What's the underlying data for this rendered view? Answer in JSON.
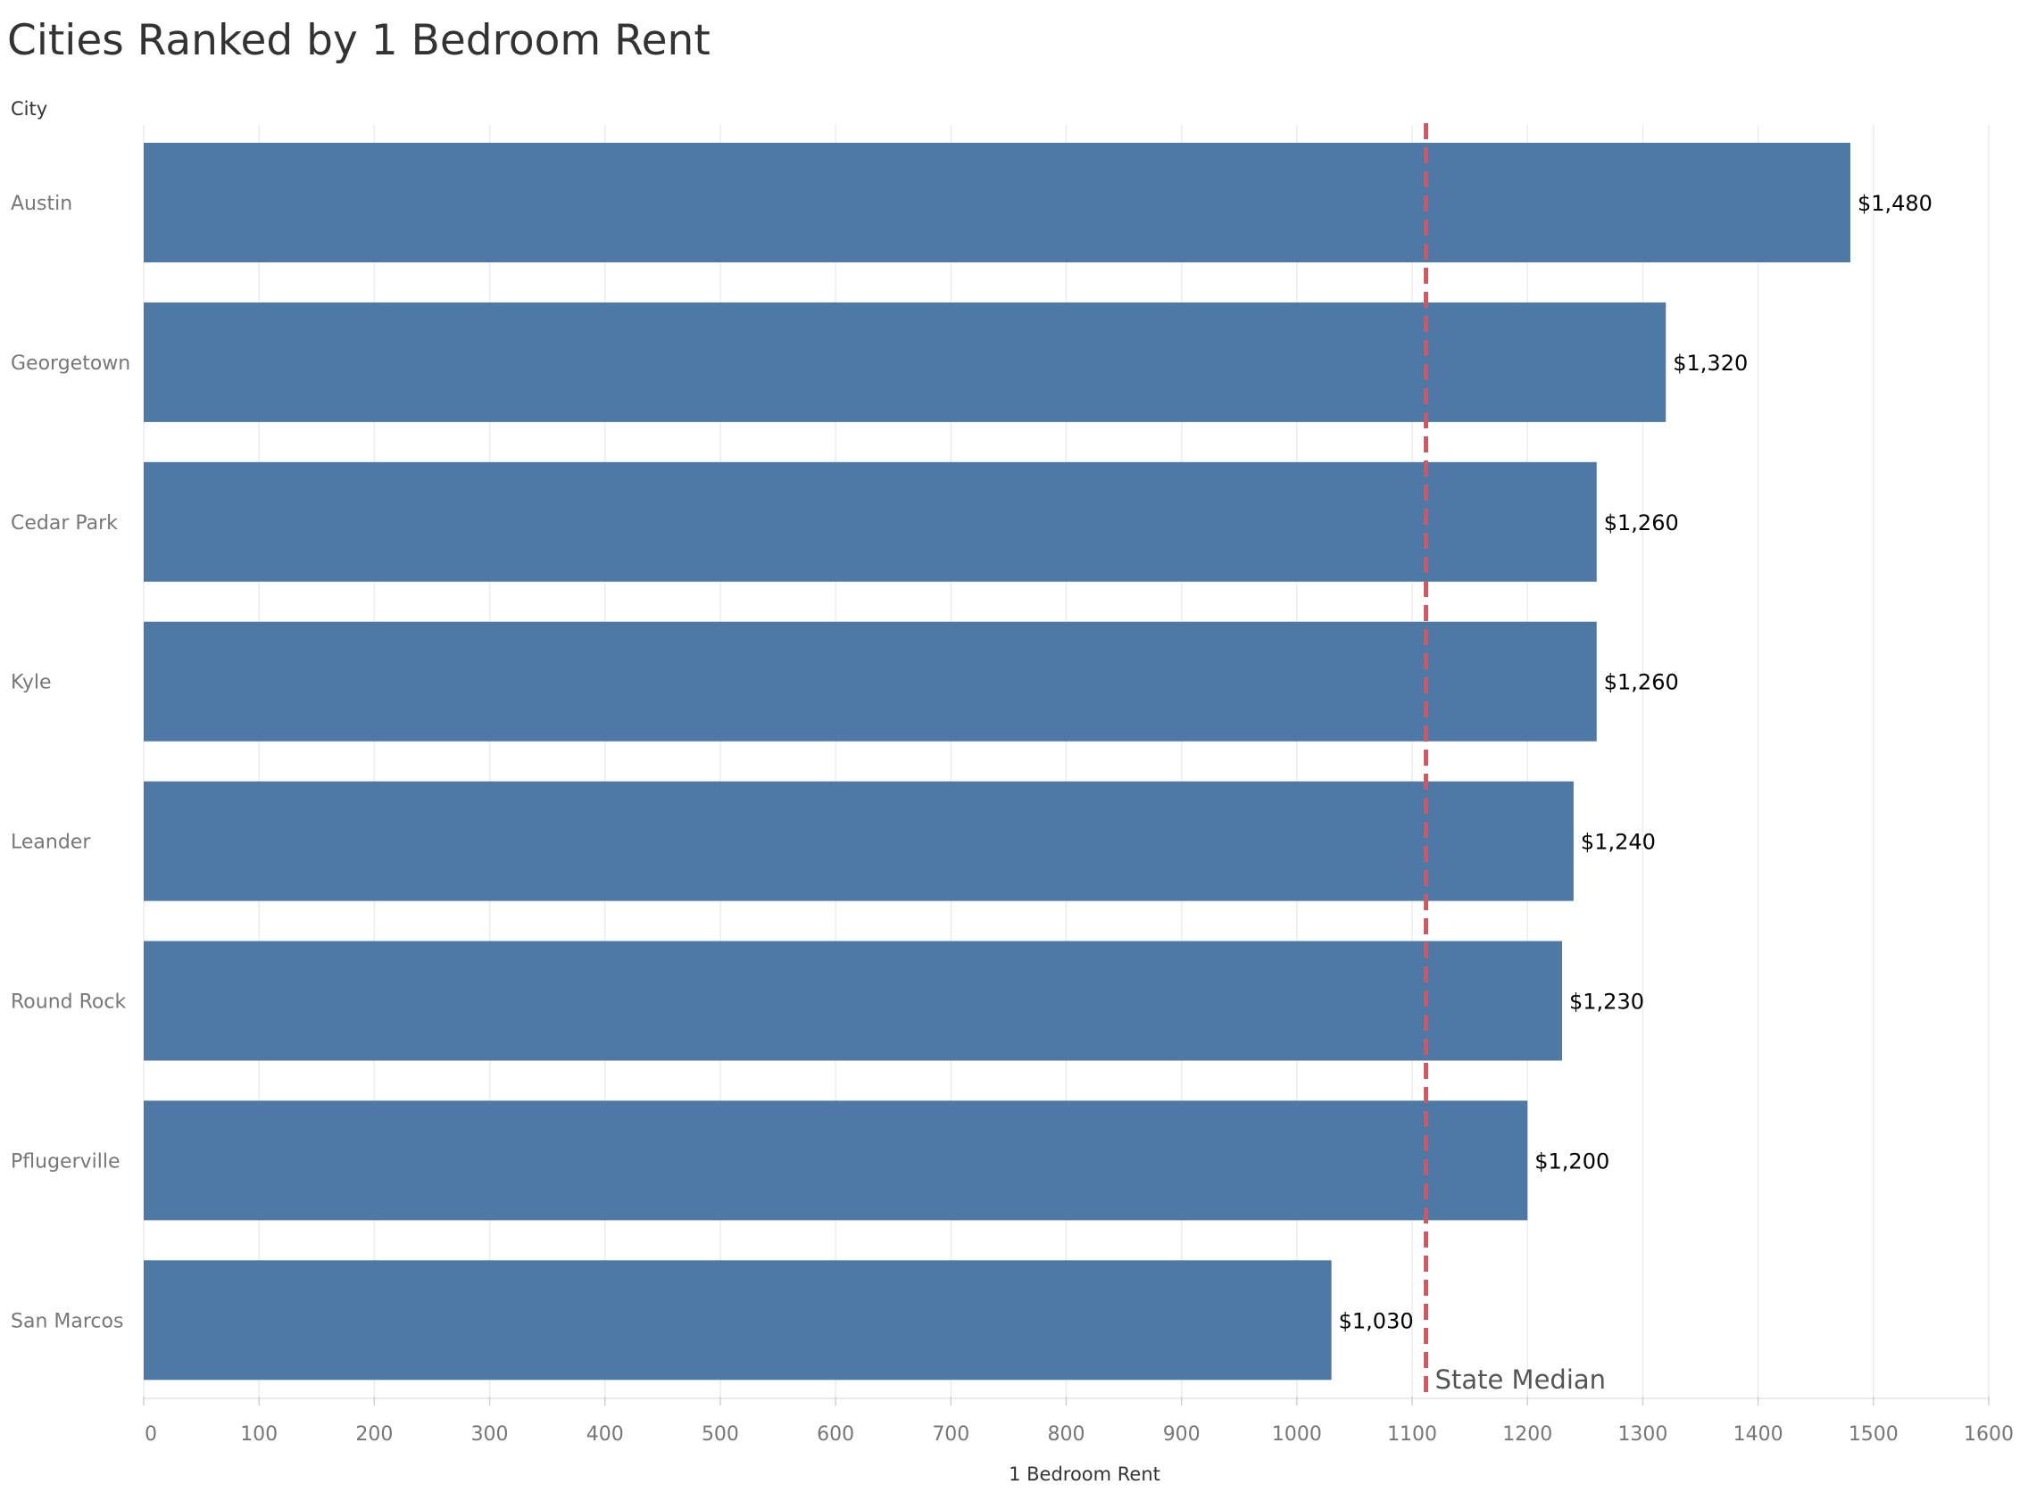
{
  "chart_data": {
    "type": "bar",
    "orientation": "horizontal",
    "title": "Cities Ranked by 1 Bedroom Rent",
    "ylabel": "City",
    "xlabel": "1 Bedroom Rent",
    "categories": [
      "Austin",
      "Georgetown",
      "Cedar Park",
      "Kyle",
      "Leander",
      "Round Rock",
      "Pflugerville",
      "San Marcos"
    ],
    "values": [
      1480,
      1320,
      1260,
      1260,
      1240,
      1230,
      1200,
      1030
    ],
    "value_labels": [
      "$1,480",
      "$1,320",
      "$1,260",
      "$1,260",
      "$1,240",
      "$1,230",
      "$1,200",
      "$1,030"
    ],
    "xlim": [
      0,
      1600
    ],
    "xticks": [
      0,
      100,
      200,
      300,
      400,
      500,
      600,
      700,
      800,
      900,
      1000,
      1100,
      1200,
      1300,
      1400,
      1500,
      1600
    ],
    "grid": "vertical",
    "reference_line": {
      "label": "State Median",
      "value": 1112,
      "style": "dashed",
      "color": "#d7545f"
    },
    "bar_color": "#4e79a7"
  }
}
